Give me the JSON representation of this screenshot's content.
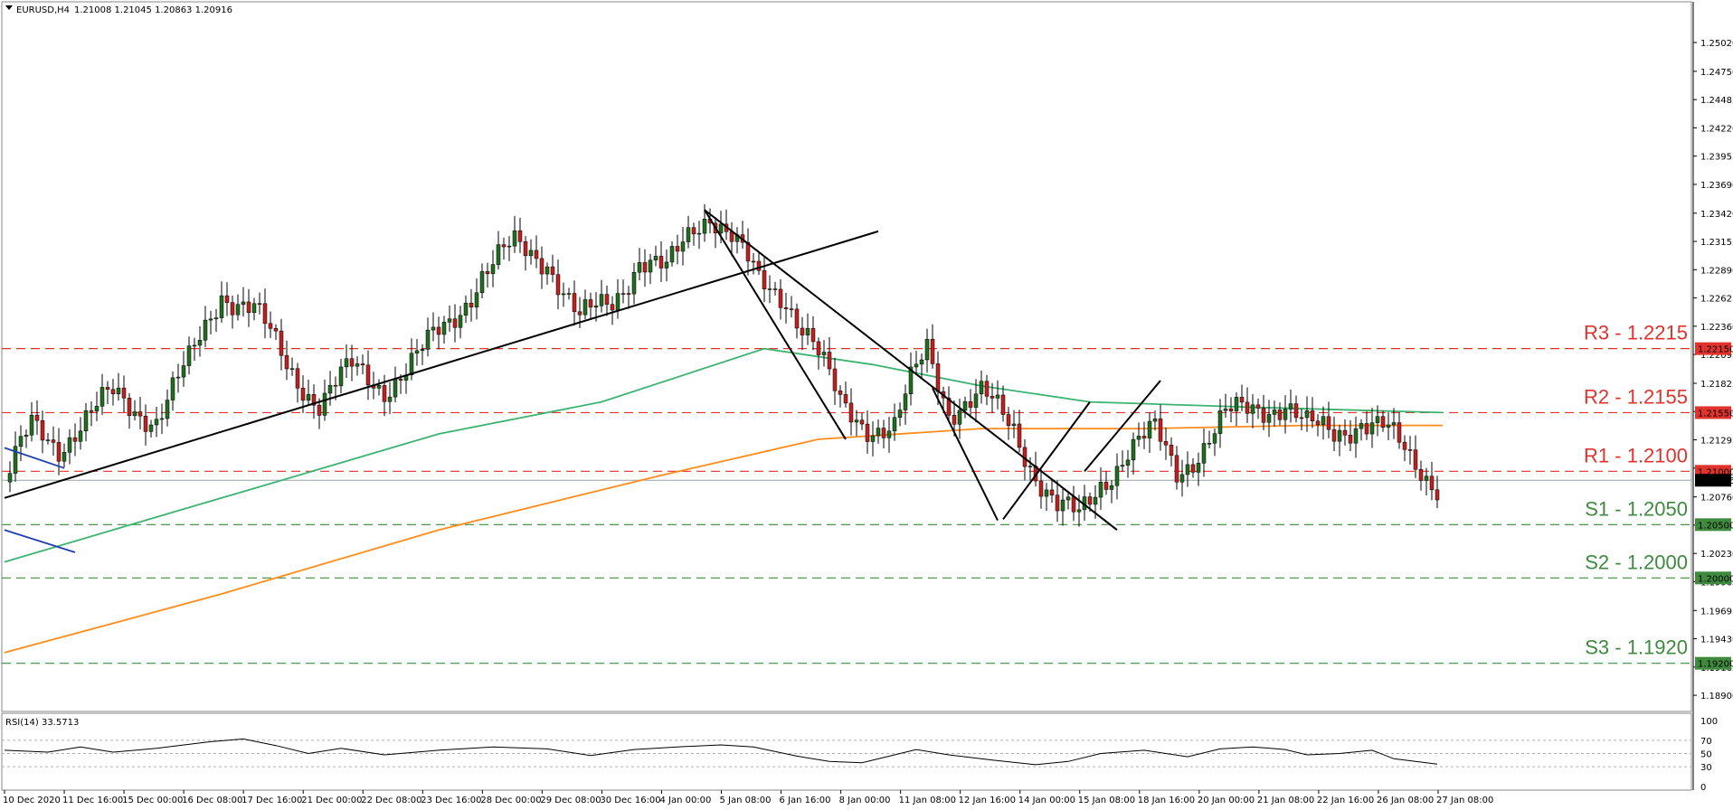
{
  "header": {
    "symbol": "EURUSD,H4",
    "ohlc": "1.21008 1.21045 1.20863 1.20916"
  },
  "rsi_header": "RSI(14) 33.5713",
  "colors": {
    "bull": "#1f6f1f",
    "bear": "#c0211f",
    "ma_fast": "#3cb371",
    "ma_slow": "#ff8c1a",
    "resistance": "#e0332e",
    "support": "#3f8a3f",
    "trendline": "#000000",
    "blue_line": "#1f3fb5",
    "current_price": "#000000"
  },
  "chart_data": [
    {
      "type": "candlestick",
      "title": "EURUSD,H4",
      "ylim": [
        1.1885,
        1.253
      ],
      "price_ticks": [
        "1.25020",
        "1.24750",
        "1.24485",
        "1.24220",
        "1.23955",
        "1.23690",
        "1.23420",
        "1.23155",
        "1.22890",
        "1.22625",
        "1.22360",
        "1.22095",
        "1.21825",
        "1.21560",
        "1.21295",
        "1.21030",
        "1.20760",
        "1.20495",
        "1.20230",
        "1.19965",
        "1.19695",
        "1.19430",
        "1.19165",
        "1.18900"
      ],
      "x_labels": [
        "10 Dec 2020",
        "11 Dec 16:00",
        "15 Dec 00:00",
        "16 Dec 08:00",
        "17 Dec 16:00",
        "21 Dec 00:00",
        "22 Dec 08:00",
        "23 Dec 16:00",
        "28 Dec 00:00",
        "29 Dec 08:00",
        "30 Dec 16:00",
        "4 Jan 00:00",
        "5 Jan 08:00",
        "6 Jan 16:00",
        "8 Jan 00:00",
        "11 Jan 08:00",
        "12 Jan 16:00",
        "14 Jan 00:00",
        "15 Jan 08:00",
        "18 Jan 16:00",
        "20 Jan 00:00",
        "21 Jan 08:00",
        "22 Jan 16:00",
        "26 Jan 08:00",
        "27 Jan 08:00"
      ],
      "current_price": "1.20916",
      "levels": [
        {
          "label": "R3 - 1.2215",
          "price": 1.2215,
          "tag": "1.22150",
          "kind": "resistance"
        },
        {
          "label": "R2 - 1.2155",
          "price": 1.2155,
          "tag": "1.21550",
          "kind": "resistance"
        },
        {
          "label": "R1 - 1.2100",
          "price": 1.21,
          "tag": "1.21000",
          "kind": "resistance"
        },
        {
          "label": "S1 - 1.2050",
          "price": 1.205,
          "tag": "1.20500",
          "kind": "support"
        },
        {
          "label": "S2 - 1.2000",
          "price": 1.2,
          "tag": "1.20000",
          "kind": "support"
        },
        {
          "label": "S3 - 1.1920",
          "price": 1.192,
          "tag": "1.19200",
          "kind": "support"
        }
      ],
      "close_path": [
        [
          0,
          1.209
        ],
        [
          5,
          1.214
        ],
        [
          10,
          1.2125
        ],
        [
          14,
          1.2145
        ],
        [
          20,
          1.217
        ],
        [
          28,
          1.215
        ],
        [
          34,
          1.22
        ],
        [
          40,
          1.227
        ],
        [
          46,
          1.225
        ],
        [
          52,
          1.22
        ],
        [
          58,
          1.2165
        ],
        [
          64,
          1.2195
        ],
        [
          70,
          1.218
        ],
        [
          76,
          1.2205
        ],
        [
          82,
          1.224
        ],
        [
          88,
          1.2285
        ],
        [
          94,
          1.231
        ],
        [
          100,
          1.23
        ],
        [
          106,
          1.224
        ],
        [
          112,
          1.226
        ],
        [
          117,
          1.23
        ],
        [
          122,
          1.2285
        ],
        [
          127,
          1.233
        ],
        [
          130,
          1.2345
        ],
        [
          134,
          1.232
        ],
        [
          139,
          1.2275
        ],
        [
          144,
          1.2265
        ],
        [
          149,
          1.222
        ],
        [
          154,
          1.216
        ],
        [
          159,
          1.2145
        ],
        [
          164,
          1.214
        ],
        [
          167,
          1.218
        ],
        [
          170,
          1.2215
        ],
        [
          174,
          1.216
        ],
        [
          180,
          1.217
        ],
        [
          186,
          1.214
        ],
        [
          190,
          1.21
        ],
        [
          194,
          1.2065
        ],
        [
          198,
          1.2055
        ],
        [
          202,
          1.209
        ],
        [
          207,
          1.212
        ],
        [
          212,
          1.2135
        ],
        [
          216,
          1.21
        ],
        [
          220,
          1.212
        ],
        [
          225,
          1.215
        ],
        [
          231,
          1.216
        ],
        [
          236,
          1.2165
        ],
        [
          240,
          1.214
        ],
        [
          245,
          1.2135
        ],
        [
          250,
          1.215
        ],
        [
          254,
          1.214
        ],
        [
          259,
          1.211
        ],
        [
          264,
          1.209
        ]
      ],
      "series": [
        {
          "name": "MA fast",
          "values": [
            [
              0,
              1.2015
            ],
            [
              40,
              1.2075
            ],
            [
              80,
              1.2135
            ],
            [
              110,
              1.2165
            ],
            [
              140,
              1.2215
            ],
            [
              160,
              1.22
            ],
            [
              180,
              1.218
            ],
            [
              200,
              1.2165
            ],
            [
              230,
              1.216
            ],
            [
              265,
              1.2155
            ]
          ]
        },
        {
          "name": "MA slow",
          "values": [
            [
              0,
              1.193
            ],
            [
              40,
              1.1985
            ],
            [
              80,
              1.2045
            ],
            [
              120,
              1.2095
            ],
            [
              150,
              1.213
            ],
            [
              180,
              1.214
            ],
            [
              210,
              1.214
            ],
            [
              240,
              1.2143
            ],
            [
              265,
              1.2143
            ]
          ]
        }
      ],
      "trendlines": [
        [
          [
            0,
            1.2075
          ],
          [
            161,
            1.2325
          ]
        ],
        [
          [
            129,
            1.2345
          ],
          [
            205,
            1.2045
          ]
        ],
        [
          [
            129,
            1.2345
          ],
          [
            155,
            1.213
          ]
        ],
        [
          [
            171,
            1.2178
          ],
          [
            183,
            1.2054
          ]
        ],
        [
          [
            184,
            1.2055
          ],
          [
            200,
            1.2165
          ]
        ],
        [
          [
            199,
            1.21
          ],
          [
            213,
            1.2185
          ]
        ]
      ],
      "blue_segments": [
        [
          [
            0,
            1.2122
          ],
          [
            11,
            1.2103
          ]
        ],
        [
          [
            0,
            1.2045
          ],
          [
            13,
            1.2024
          ]
        ]
      ]
    },
    {
      "type": "line",
      "title": "RSI(14) 33.5713",
      "ylim": [
        0,
        100
      ],
      "levels": [
        70,
        50,
        30
      ],
      "ticks": [
        "100",
        "70",
        "50",
        "30",
        "0"
      ],
      "values": [
        [
          0,
          55
        ],
        [
          8,
          52
        ],
        [
          14,
          60
        ],
        [
          20,
          52
        ],
        [
          28,
          58
        ],
        [
          38,
          68
        ],
        [
          44,
          72
        ],
        [
          50,
          62
        ],
        [
          56,
          50
        ],
        [
          62,
          58
        ],
        [
          70,
          48
        ],
        [
          80,
          55
        ],
        [
          90,
          60
        ],
        [
          100,
          57
        ],
        [
          108,
          47
        ],
        [
          116,
          56
        ],
        [
          124,
          60
        ],
        [
          132,
          63
        ],
        [
          138,
          60
        ],
        [
          146,
          46
        ],
        [
          152,
          38
        ],
        [
          158,
          36
        ],
        [
          164,
          48
        ],
        [
          168,
          56
        ],
        [
          174,
          48
        ],
        [
          182,
          40
        ],
        [
          190,
          33
        ],
        [
          196,
          38
        ],
        [
          202,
          50
        ],
        [
          210,
          55
        ],
        [
          218,
          45
        ],
        [
          224,
          57
        ],
        [
          230,
          60
        ],
        [
          236,
          56
        ],
        [
          240,
          48
        ],
        [
          246,
          50
        ],
        [
          252,
          55
        ],
        [
          256,
          42
        ],
        [
          264,
          34
        ]
      ]
    }
  ]
}
